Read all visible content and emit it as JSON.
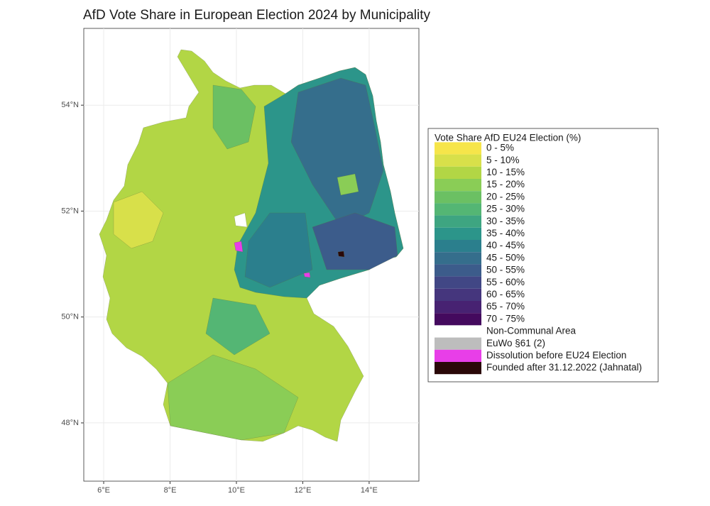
{
  "chart_data": {
    "type": "map",
    "title": "AfD Vote Share in European Election 2024 by Municipality",
    "xlim": [
      5.4,
      15.5
    ],
    "ylim": [
      46.9,
      55.45
    ],
    "xticks": [
      {
        "value": 6,
        "label": "6°E"
      },
      {
        "value": 8,
        "label": "8°E"
      },
      {
        "value": 10,
        "label": "10°E"
      },
      {
        "value": 12,
        "label": "12°E"
      },
      {
        "value": 14,
        "label": "14°E"
      }
    ],
    "yticks": [
      {
        "value": 48,
        "label": "48°N"
      },
      {
        "value": 50,
        "label": "50°N"
      },
      {
        "value": 52,
        "label": "52°N"
      },
      {
        "value": 54,
        "label": "54°N"
      }
    ],
    "grid": true,
    "legend": {
      "title": "Vote Share AfD EU24 Election (%)",
      "position": "right",
      "items": [
        {
          "label": "0 - 5%",
          "color": "#f6e54a"
        },
        {
          "label": "5 - 10%",
          "color": "#d8e04a"
        },
        {
          "label": "10 - 15%",
          "color": "#b2d645"
        },
        {
          "label": "15 - 20%",
          "color": "#8acd56"
        },
        {
          "label": "20 - 25%",
          "color": "#6bc063"
        },
        {
          "label": "25 - 30%",
          "color": "#54b674"
        },
        {
          "label": "30 - 35%",
          "color": "#3ea581"
        },
        {
          "label": "35 - 40%",
          "color": "#2c958a"
        },
        {
          "label": "40 - 45%",
          "color": "#2b7f8d"
        },
        {
          "label": "45 - 50%",
          "color": "#356e8c"
        },
        {
          "label": "50 - 55%",
          "color": "#3c5c8b"
        },
        {
          "label": "55 - 60%",
          "color": "#414785"
        },
        {
          "label": "60 - 65%",
          "color": "#45367d"
        },
        {
          "label": "65 - 70%",
          "color": "#472272"
        },
        {
          "label": "70 - 75%",
          "color": "#440a5e"
        },
        {
          "label": "Non-Communal Area",
          "color": "#ffffff"
        },
        {
          "label": "EuWo §61 (2)",
          "color": "#bdbdbd"
        },
        {
          "label": "Dissolution before EU24 Election",
          "color": "#e83ee8"
        },
        {
          "label": "Founded after 31.12.2022 (Jahnatal)",
          "color": "#2a0808"
        }
      ]
    }
  }
}
